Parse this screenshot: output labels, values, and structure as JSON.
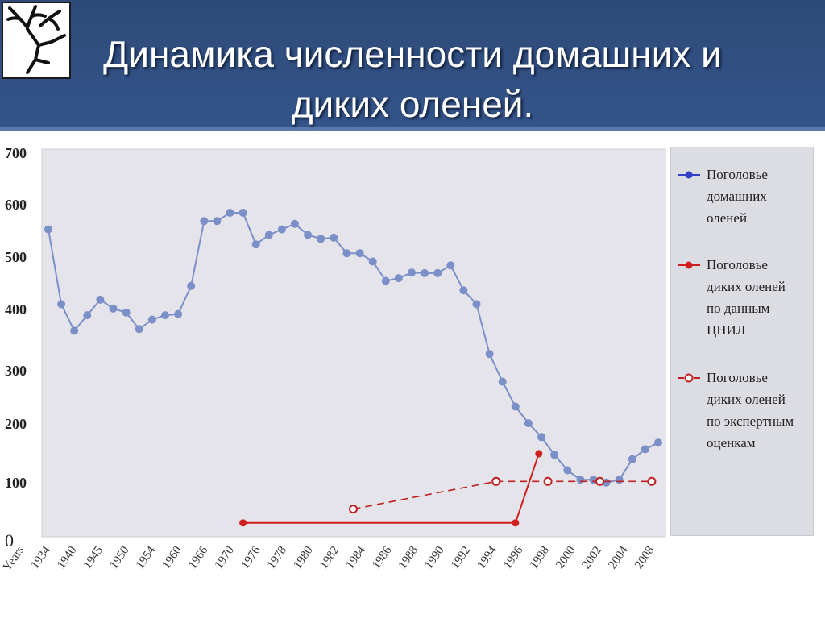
{
  "title": {
    "line1": "Динамика численности домашних и",
    "line2": "диких оленей."
  },
  "colors": {
    "header": "#2e4a78",
    "plot_bg": "#e4e4ea",
    "domestic": "#7b8fc8",
    "wild_cnil": "#d01f1f",
    "wild_expert": "#c02020"
  },
  "legend": {
    "domestic": "Поголовье\nдомашних\nоленей",
    "wild_cnil": "Поголовье\nдиких оленей\nпо данным\nЦНИЛ",
    "wild_expert": "Поголовье\nдиких оленей\nпо экспертным\nоценкам"
  },
  "chart_data": {
    "type": "line",
    "ylim": [
      0,
      700
    ],
    "y_ticks": [
      "0",
      "100",
      "200",
      "300",
      "400",
      "500",
      "600",
      "700"
    ],
    "x_tick_labels": [
      "Years",
      "1934",
      "1940",
      "1945",
      "1950",
      "1954",
      "1960",
      "1966",
      "1970",
      "1976",
      "1978",
      "1980",
      "1982",
      "1984",
      "1986",
      "1988",
      "1990",
      "1992",
      "1994",
      "1996",
      "1998",
      "2000",
      "2002",
      "2004",
      "2008"
    ],
    "series": [
      {
        "name": "Поголовье домашних оленей",
        "style": "solid-filled",
        "x": [
          0,
          1,
          2,
          3,
          4,
          5,
          6,
          7,
          8,
          9,
          10,
          11,
          12,
          13,
          14,
          15,
          16,
          17,
          18,
          19,
          20,
          21,
          22,
          23,
          24,
          25,
          26,
          27,
          28,
          29,
          30,
          31,
          32,
          33,
          34,
          35,
          36,
          37,
          38,
          39,
          40,
          41,
          42,
          43,
          44,
          45,
          46,
          47
        ],
        "y": [
          555,
          420,
          372,
          400,
          428,
          412,
          405,
          375,
          392,
          400,
          402,
          453,
          570,
          570,
          585,
          585,
          528,
          545,
          555,
          565,
          545,
          538,
          540,
          512,
          512,
          497,
          462,
          467,
          477,
          476,
          476,
          490,
          445,
          420,
          330,
          280,
          235,
          205,
          180,
          148,
          120,
          103,
          103,
          98,
          103,
          140,
          158,
          170
        ]
      },
      {
        "name": "Поголовье диких оленей по данным ЦНИЛ",
        "style": "solid-filled",
        "x": [
          15,
          36,
          37.8
        ],
        "y": [
          25,
          25,
          150
        ]
      },
      {
        "name": "Поголовье диких оленей по экспертным оценкам",
        "style": "dashed-hollow",
        "x": [
          23.5,
          34.5,
          38.5,
          42.5,
          46.5
        ],
        "y": [
          50,
          100,
          100,
          100,
          100
        ]
      }
    ]
  }
}
